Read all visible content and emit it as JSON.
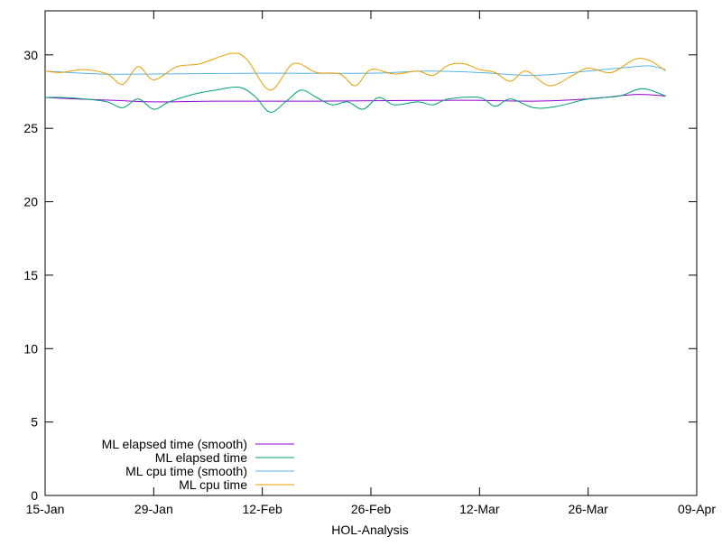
{
  "chart_data": {
    "type": "line",
    "title": "",
    "xlabel": "HOL-Analysis",
    "ylabel": "",
    "x_axis": {
      "type": "date",
      "range": [
        "2021-01-15",
        "2021-04-09"
      ],
      "ticks": [
        {
          "date": "2021-01-15",
          "label": "15-Jan"
        },
        {
          "date": "2021-01-29",
          "label": "29-Jan"
        },
        {
          "date": "2021-02-12",
          "label": "12-Feb"
        },
        {
          "date": "2021-02-26",
          "label": "26-Feb"
        },
        {
          "date": "2021-03-12",
          "label": "12-Mar"
        },
        {
          "date": "2021-03-26",
          "label": "26-Mar"
        },
        {
          "date": "2021-04-09",
          "label": "09-Apr"
        }
      ]
    },
    "y_axis": {
      "range": [
        0,
        33
      ],
      "ticks": [
        {
          "value": 0,
          "label": "0"
        },
        {
          "value": 5,
          "label": "5"
        },
        {
          "value": 10,
          "label": "10"
        },
        {
          "value": 15,
          "label": "15"
        },
        {
          "value": 20,
          "label": "20"
        },
        {
          "value": 25,
          "label": "25"
        },
        {
          "value": 30,
          "label": "30"
        }
      ]
    },
    "grid": false,
    "legend_position": "bottom-left",
    "series": [
      {
        "name": "ML elapsed time (smooth)",
        "color": "#9400d3",
        "points": [
          [
            "2021-01-15",
            27.1
          ],
          [
            "2021-01-19",
            27.0
          ],
          [
            "2021-01-24",
            26.9
          ],
          [
            "2021-01-29",
            26.8
          ],
          [
            "2021-02-06",
            26.85
          ],
          [
            "2021-02-19",
            26.85
          ],
          [
            "2021-03-05",
            26.9
          ],
          [
            "2021-03-12",
            26.9
          ],
          [
            "2021-03-19",
            26.85
          ],
          [
            "2021-03-26",
            27.0
          ],
          [
            "2021-04-01",
            27.3
          ],
          [
            "2021-04-05",
            27.2
          ]
        ]
      },
      {
        "name": "ML elapsed time",
        "color": "#009e73",
        "points": [
          [
            "2021-01-15",
            27.1
          ],
          [
            "2021-01-17",
            27.1
          ],
          [
            "2021-01-20",
            27.0
          ],
          [
            "2021-01-23",
            26.8
          ],
          [
            "2021-01-25",
            26.4
          ],
          [
            "2021-01-27",
            27.0
          ],
          [
            "2021-01-29",
            26.3
          ],
          [
            "2021-01-31",
            26.8
          ],
          [
            "2021-02-03",
            27.3
          ],
          [
            "2021-02-06",
            27.6
          ],
          [
            "2021-02-09",
            27.8
          ],
          [
            "2021-02-11",
            27.2
          ],
          [
            "2021-02-13",
            26.1
          ],
          [
            "2021-02-15",
            26.8
          ],
          [
            "2021-02-17",
            27.6
          ],
          [
            "2021-02-19",
            27.1
          ],
          [
            "2021-02-21",
            26.6
          ],
          [
            "2021-02-23",
            26.8
          ],
          [
            "2021-02-25",
            26.3
          ],
          [
            "2021-02-27",
            27.1
          ],
          [
            "2021-03-01",
            26.6
          ],
          [
            "2021-03-04",
            26.8
          ],
          [
            "2021-03-06",
            26.6
          ],
          [
            "2021-03-08",
            27.0
          ],
          [
            "2021-03-12",
            27.1
          ],
          [
            "2021-03-14",
            26.5
          ],
          [
            "2021-03-16",
            27.0
          ],
          [
            "2021-03-19",
            26.4
          ],
          [
            "2021-03-22",
            26.5
          ],
          [
            "2021-03-26",
            27.0
          ],
          [
            "2021-03-30",
            27.2
          ],
          [
            "2021-04-02",
            27.7
          ],
          [
            "2021-04-05",
            27.2
          ]
        ]
      },
      {
        "name": "ML cpu time (smooth)",
        "color": "#56b4e9",
        "points": [
          [
            "2021-01-15",
            28.9
          ],
          [
            "2021-01-22",
            28.7
          ],
          [
            "2021-01-29",
            28.7
          ],
          [
            "2021-02-12",
            28.75
          ],
          [
            "2021-02-26",
            28.75
          ],
          [
            "2021-03-05",
            28.9
          ],
          [
            "2021-03-12",
            28.8
          ],
          [
            "2021-03-19",
            28.6
          ],
          [
            "2021-03-26",
            28.9
          ],
          [
            "2021-04-01",
            29.2
          ],
          [
            "2021-04-03",
            29.25
          ],
          [
            "2021-04-05",
            29.0
          ]
        ]
      },
      {
        "name": "ML cpu time",
        "color": "#e69f00",
        "points": [
          [
            "2021-01-15",
            28.9
          ],
          [
            "2021-01-17",
            28.8
          ],
          [
            "2021-01-20",
            29.0
          ],
          [
            "2021-01-23",
            28.7
          ],
          [
            "2021-01-25",
            28.0
          ],
          [
            "2021-01-27",
            29.2
          ],
          [
            "2021-01-29",
            28.3
          ],
          [
            "2021-02-01",
            29.2
          ],
          [
            "2021-02-04",
            29.4
          ],
          [
            "2021-02-08",
            30.1
          ],
          [
            "2021-02-10",
            29.7
          ],
          [
            "2021-02-13",
            27.6
          ],
          [
            "2021-02-16",
            29.4
          ],
          [
            "2021-02-19",
            28.8
          ],
          [
            "2021-02-22",
            28.7
          ],
          [
            "2021-02-24",
            27.9
          ],
          [
            "2021-02-26",
            29.0
          ],
          [
            "2021-03-01",
            28.7
          ],
          [
            "2021-03-04",
            28.9
          ],
          [
            "2021-03-06",
            28.6
          ],
          [
            "2021-03-08",
            29.3
          ],
          [
            "2021-03-10",
            29.4
          ],
          [
            "2021-03-12",
            29.0
          ],
          [
            "2021-03-14",
            28.8
          ],
          [
            "2021-03-16",
            28.2
          ],
          [
            "2021-03-18",
            28.9
          ],
          [
            "2021-03-21",
            27.9
          ],
          [
            "2021-03-24",
            28.6
          ],
          [
            "2021-03-26",
            29.1
          ],
          [
            "2021-03-29",
            28.8
          ],
          [
            "2021-04-01",
            29.7
          ],
          [
            "2021-04-03",
            29.6
          ],
          [
            "2021-04-05",
            28.9
          ]
        ]
      }
    ]
  }
}
